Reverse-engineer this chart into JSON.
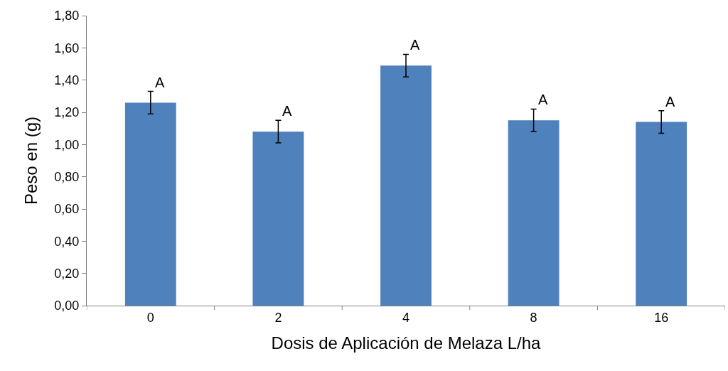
{
  "chart_data": {
    "type": "bar",
    "xlabel": "Dosis de Aplicación de Melaza L/ha",
    "ylabel": "Peso en (g)",
    "categories": [
      "0",
      "2",
      "4",
      "8",
      "16"
    ],
    "values": [
      1.26,
      1.08,
      1.49,
      1.15,
      1.14
    ],
    "errors": [
      0.07,
      0.07,
      0.07,
      0.07,
      0.07
    ],
    "color": "#4f81bd",
    "ylim": [
      0,
      1.8
    ],
    "yticks": [
      {
        "value": 0,
        "label": "0,00"
      },
      {
        "value": 0.2,
        "label": "0,20"
      },
      {
        "value": 0.4,
        "label": "0,40"
      },
      {
        "value": 0.6,
        "label": "0,60"
      },
      {
        "value": 0.8,
        "label": "0,80"
      },
      {
        "value": 1,
        "label": "1,00"
      },
      {
        "value": 1.2,
        "label": "1,20"
      },
      {
        "value": 1.4,
        "label": "1,40"
      },
      {
        "value": 1.6,
        "label": "1,60"
      },
      {
        "value": 1.8,
        "label": "1,80"
      }
    ],
    "annotations": [
      {
        "text": "A",
        "x": "0",
        "y": 1.33
      },
      {
        "text": "A",
        "x": "2",
        "y": 1.15
      },
      {
        "text": "A",
        "x": "4",
        "y": 1.56
      },
      {
        "text": "A",
        "x": "8",
        "y": 1.22
      },
      {
        "text": "A",
        "x": "16",
        "y": 1.21
      }
    ],
    "grid": false
  }
}
